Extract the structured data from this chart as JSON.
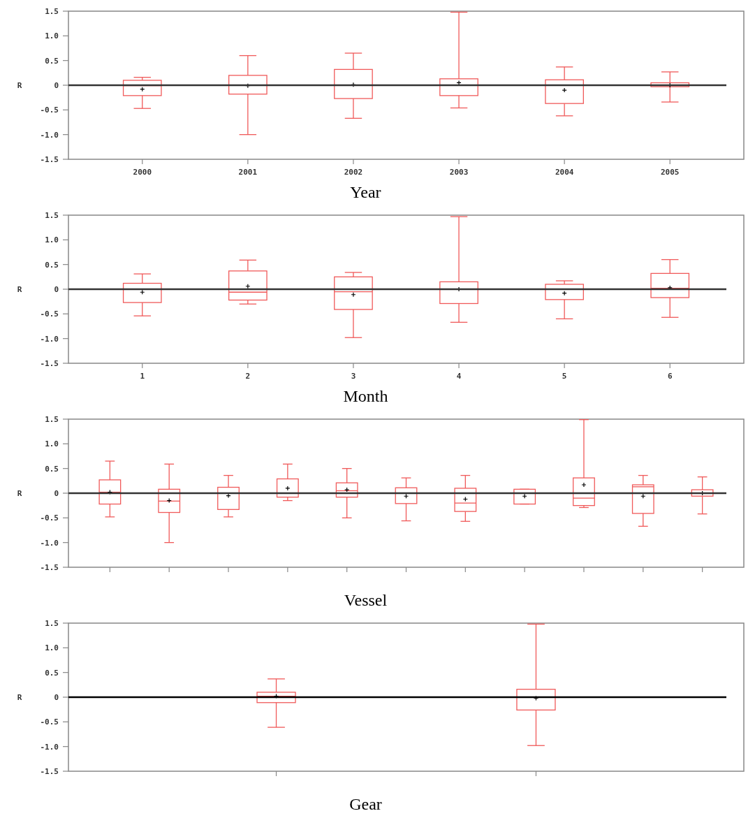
{
  "chart_data": [
    {
      "type": "box",
      "xlabel": "Year",
      "ylabel": "R",
      "color": "#f05a5a",
      "categories": [
        "2000",
        "2001",
        "2002",
        "2003",
        "2004",
        "2005"
      ],
      "ylim": [
        -1.5,
        1.5
      ],
      "yticks": [
        {
          "value": -1.5,
          "label": "-1.5"
        },
        {
          "value": -1,
          "label": "-1.0"
        },
        {
          "value": -0.5,
          "label": "-0.5"
        },
        {
          "value": 0,
          "label": "0"
        },
        {
          "value": 0.5,
          "label": "0.5"
        },
        {
          "value": 1,
          "label": "1.0"
        },
        {
          "value": 1.5,
          "label": "1.5"
        }
      ],
      "grid": false,
      "ref_lines": [
        {
          "axis": "y",
          "value": 0,
          "color": "#333333"
        }
      ],
      "boxes": [
        {
          "low": -0.47,
          "q1": -0.21,
          "median": -0.01,
          "q3": 0.1,
          "high": 0.16,
          "mean": -0.08
        },
        {
          "low": -1.0,
          "q1": -0.18,
          "median": 0,
          "q3": 0.2,
          "high": 0.6,
          "mean": -0.01
        },
        {
          "low": -0.67,
          "q1": -0.27,
          "median": 0,
          "q3": 0.32,
          "high": 0.65,
          "mean": 0.01
        },
        {
          "low": -0.46,
          "q1": -0.21,
          "median": 0,
          "q3": 0.13,
          "high": 1.48,
          "mean": 0.05
        },
        {
          "low": -0.62,
          "q1": -0.37,
          "median": 0,
          "q3": 0.11,
          "high": 0.37,
          "mean": -0.1
        },
        {
          "low": -0.34,
          "q1": -0.03,
          "median": 0,
          "q3": 0.05,
          "high": 0.27,
          "mean": 0
        }
      ]
    },
    {
      "type": "box",
      "xlabel": "Month",
      "ylabel": "R",
      "color": "#f05a5a",
      "categories": [
        "1",
        "2",
        "3",
        "4",
        "5",
        "6"
      ],
      "ylim": [
        -1.5,
        1.5
      ],
      "yticks": [
        {
          "value": -1.5,
          "label": "-1.5"
        },
        {
          "value": -1,
          "label": "-1.0"
        },
        {
          "value": -0.5,
          "label": "-0.5"
        },
        {
          "value": 0,
          "label": "0"
        },
        {
          "value": 0.5,
          "label": "0.5"
        },
        {
          "value": 1,
          "label": "1.0"
        },
        {
          "value": 1.5,
          "label": "1.5"
        }
      ],
      "grid": false,
      "ref_lines": [
        {
          "axis": "y",
          "value": 0,
          "color": "#333333"
        }
      ],
      "boxes": [
        {
          "low": -0.54,
          "q1": -0.27,
          "median": 0,
          "q3": 0.12,
          "high": 0.31,
          "mean": -0.06
        },
        {
          "low": -0.3,
          "q1": -0.22,
          "median": -0.06,
          "q3": 0.37,
          "high": 0.59,
          "mean": 0.06
        },
        {
          "low": -0.98,
          "q1": -0.41,
          "median": -0.05,
          "q3": 0.25,
          "high": 0.34,
          "mean": -0.11
        },
        {
          "low": -0.67,
          "q1": -0.29,
          "median": 0,
          "q3": 0.15,
          "high": 1.47,
          "mean": 0
        },
        {
          "low": -0.6,
          "q1": -0.21,
          "median": 0,
          "q3": 0.1,
          "high": 0.17,
          "mean": -0.08
        },
        {
          "low": -0.57,
          "q1": -0.17,
          "median": 0.02,
          "q3": 0.32,
          "high": 0.6,
          "mean": 0.03
        }
      ]
    },
    {
      "type": "box",
      "xlabel": "Vessel",
      "ylabel": "R",
      "color": "#f05a5a",
      "categories": [
        null,
        null,
        null,
        null,
        null,
        null,
        null,
        null,
        null,
        null,
        null
      ],
      "ylim": [
        -1.5,
        1.5
      ],
      "yticks": [
        {
          "value": -1.5,
          "label": "-1.5"
        },
        {
          "value": -1,
          "label": "-1.0"
        },
        {
          "value": -0.5,
          "label": "-0.5"
        },
        {
          "value": 0,
          "label": "0"
        },
        {
          "value": 0.5,
          "label": "0.5"
        },
        {
          "value": 1,
          "label": "1.0"
        },
        {
          "value": 1.5,
          "label": "1.5"
        }
      ],
      "grid": false,
      "ref_lines": [
        {
          "axis": "y",
          "value": 0,
          "color": "#333333"
        }
      ],
      "boxes": [
        {
          "low": -0.48,
          "q1": -0.22,
          "median": 0.02,
          "q3": 0.27,
          "high": 0.65,
          "mean": 0.02
        },
        {
          "low": -1.0,
          "q1": -0.39,
          "median": -0.16,
          "q3": 0.08,
          "high": 0.59,
          "mean": -0.15
        },
        {
          "low": -0.48,
          "q1": -0.33,
          "median": 0,
          "q3": 0.12,
          "high": 0.36,
          "mean": -0.05
        },
        {
          "low": -0.15,
          "q1": -0.08,
          "median": 0,
          "q3": 0.29,
          "high": 0.59,
          "mean": 0.1
        },
        {
          "low": -0.5,
          "q1": -0.08,
          "median": 0.05,
          "q3": 0.21,
          "high": 0.5,
          "mean": 0.07
        },
        {
          "low": -0.56,
          "q1": -0.21,
          "median": 0,
          "q3": 0.11,
          "high": 0.31,
          "mean": -0.06
        },
        {
          "low": -0.57,
          "q1": -0.37,
          "median": -0.2,
          "q3": 0.1,
          "high": 0.36,
          "mean": -0.12
        },
        {
          "low": -0.22,
          "q1": -0.22,
          "median": 0,
          "q3": 0.08,
          "high": 0.08,
          "mean": -0.06
        },
        {
          "low": -0.29,
          "q1": -0.25,
          "median": -0.1,
          "q3": 0.31,
          "high": 1.49,
          "mean": 0.17
        },
        {
          "low": -0.67,
          "q1": -0.41,
          "median": 0.13,
          "q3": 0.17,
          "high": 0.36,
          "mean": -0.06
        },
        {
          "low": -0.42,
          "q1": -0.06,
          "median": 0,
          "q3": 0.07,
          "high": 0.33,
          "mean": 0
        }
      ]
    },
    {
      "type": "box",
      "xlabel": "Gear",
      "ylabel": "R",
      "color": "#f05a5a",
      "categories": [
        null,
        null
      ],
      "ylim": [
        -1.5,
        1.5
      ],
      "yticks": [
        {
          "value": -1.5,
          "label": "-1.5"
        },
        {
          "value": -1,
          "label": "-1.0"
        },
        {
          "value": -0.5,
          "label": "-0.5"
        },
        {
          "value": 0,
          "label": "0"
        },
        {
          "value": 0.5,
          "label": "0.5"
        },
        {
          "value": 1,
          "label": "1.0"
        },
        {
          "value": 1.5,
          "label": "1.5"
        }
      ],
      "grid": false,
      "ref_lines": [
        {
          "axis": "y",
          "value": 0,
          "color": "#000000"
        }
      ],
      "boxes": [
        {
          "low": -0.61,
          "q1": -0.11,
          "median": 0.02,
          "q3": 0.1,
          "high": 0.37,
          "mean": 0.02
        },
        {
          "low": -0.98,
          "q1": -0.26,
          "median": 0,
          "q3": 0.16,
          "high": 1.48,
          "mean": -0.02
        }
      ]
    }
  ]
}
